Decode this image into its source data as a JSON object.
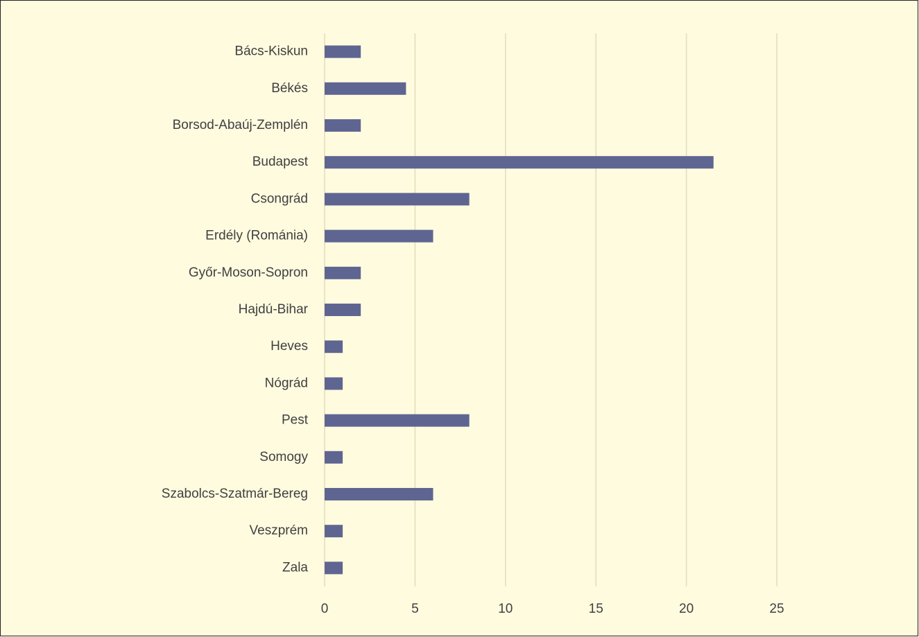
{
  "chart_data": {
    "type": "bar",
    "orientation": "horizontal",
    "categories": [
      "Bács-Kiskun",
      "Békés",
      "Borsod-Abaúj-Zemplén",
      "Budapest",
      "Csongrád",
      "Erdély (Románia)",
      "Győr-Moson-Sopron",
      "Hajdú-Bihar",
      "Heves",
      "Nógrád",
      "Pest",
      "Somogy",
      "Szabolcs-Szatmár-Bereg",
      "Veszprém",
      "Zala"
    ],
    "values": [
      2,
      4.5,
      2,
      21.5,
      8,
      6,
      2,
      2,
      1,
      1,
      8,
      1,
      6,
      1,
      1
    ],
    "color": "#5f6591",
    "xlim": [
      0,
      25
    ],
    "xticks": [
      0,
      5,
      10,
      15,
      20,
      25
    ],
    "grid": true
  }
}
